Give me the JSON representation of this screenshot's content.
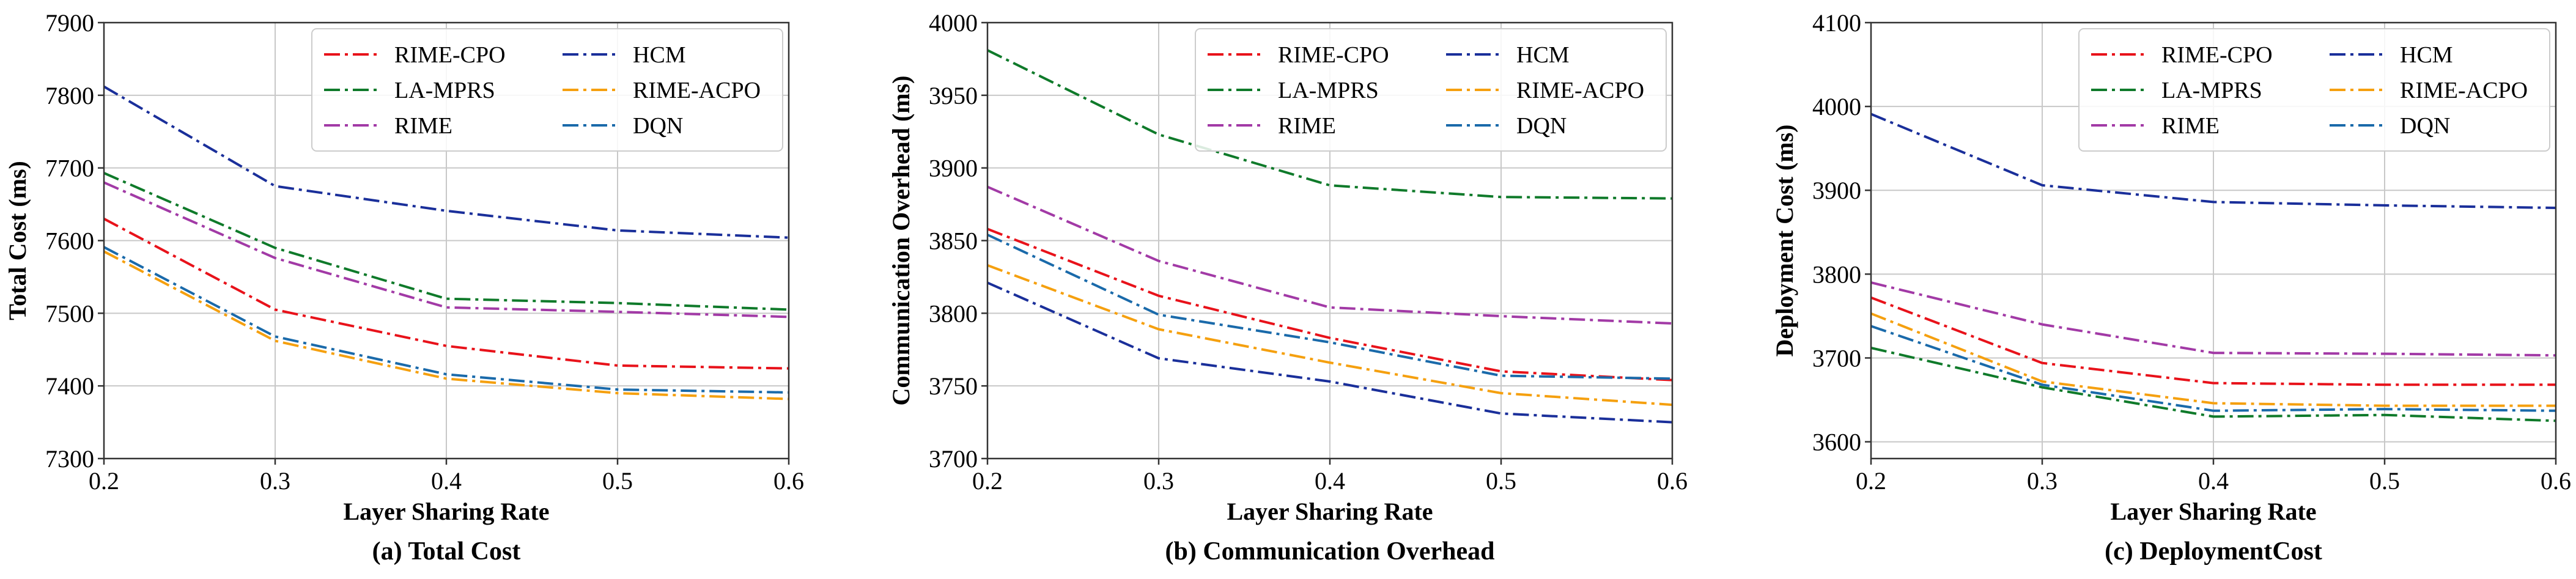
{
  "chart_data": [
    {
      "type": "line",
      "caption": "(a) Total Cost",
      "xlabel": "Layer Sharing Rate",
      "ylabel": "Total Cost (ms)",
      "x": [
        0.2,
        0.3,
        0.4,
        0.5,
        0.6
      ],
      "xticks": [
        "0.2",
        "0.3",
        "0.4",
        "0.5",
        "0.6"
      ],
      "ylim": [
        7300,
        7900
      ],
      "yticks": [
        "7300",
        "7400",
        "7500",
        "7600",
        "7700",
        "7800",
        "7900"
      ],
      "grid": true,
      "legend": "top-right",
      "series": [
        {
          "name": "RIME-CPO",
          "color": "#e8121a",
          "values": [
            7630,
            7505,
            7455,
            7428,
            7424
          ]
        },
        {
          "name": "LA-MPRS",
          "color": "#0f7a2a",
          "values": [
            7693,
            7590,
            7520,
            7514,
            7505
          ]
        },
        {
          "name": "RIME",
          "color": "#a23aa6",
          "values": [
            7680,
            7576,
            7508,
            7502,
            7495
          ]
        },
        {
          "name": "HCM",
          "color": "#1a2f9a",
          "values": [
            7812,
            7675,
            7641,
            7614,
            7604
          ]
        },
        {
          "name": "RIME-ACPO",
          "color": "#f5a00f",
          "values": [
            7585,
            7462,
            7410,
            7390,
            7382
          ]
        },
        {
          "name": "DQN",
          "color": "#1a6aaa",
          "values": [
            7591,
            7468,
            7416,
            7395,
            7391
          ]
        }
      ]
    },
    {
      "type": "line",
      "caption": "(b) Communication Overhead",
      "xlabel": "Layer Sharing Rate",
      "ylabel": "Communication Overhead (ms)",
      "x": [
        0.2,
        0.3,
        0.4,
        0.5,
        0.6
      ],
      "xticks": [
        "0.2",
        "0.3",
        "0.4",
        "0.5",
        "0.6"
      ],
      "ylim": [
        3700,
        4000
      ],
      "yticks": [
        "3700",
        "3750",
        "3800",
        "3850",
        "3900",
        "3950",
        "4000"
      ],
      "grid": true,
      "legend": "top-right",
      "series": [
        {
          "name": "RIME-CPO",
          "color": "#e8121a",
          "values": [
            3858,
            3812,
            3783,
            3760,
            3754
          ]
        },
        {
          "name": "LA-MPRS",
          "color": "#0f7a2a",
          "values": [
            3981,
            3923,
            3888,
            3880,
            3879
          ]
        },
        {
          "name": "RIME",
          "color": "#a23aa6",
          "values": [
            3887,
            3836,
            3804,
            3798,
            3793
          ]
        },
        {
          "name": "HCM",
          "color": "#1a2f9a",
          "values": [
            3821,
            3769,
            3753,
            3731,
            3725
          ]
        },
        {
          "name": "RIME-ACPO",
          "color": "#f5a00f",
          "values": [
            3833,
            3789,
            3766,
            3745,
            3737
          ]
        },
        {
          "name": "DQN",
          "color": "#1a6aaa",
          "values": [
            3854,
            3799,
            3780,
            3757,
            3755
          ]
        }
      ]
    },
    {
      "type": "line",
      "caption": "(c) DeploymentCost",
      "xlabel": "Layer Sharing Rate",
      "ylabel": "Deployment Cost (ms)",
      "x": [
        0.2,
        0.3,
        0.4,
        0.5,
        0.6
      ],
      "xticks": [
        "0.2",
        "0.3",
        "0.4",
        "0.5",
        "0.6"
      ],
      "ylim": [
        3580,
        4100
      ],
      "yticks": [
        "3600",
        "3700",
        "3800",
        "3900",
        "4000",
        "4100"
      ],
      "grid": true,
      "legend": "top-right",
      "series": [
        {
          "name": "RIME-CPO",
          "color": "#e8121a",
          "values": [
            3772,
            3694,
            3670,
            3668,
            3668
          ]
        },
        {
          "name": "LA-MPRS",
          "color": "#0f7a2a",
          "values": [
            3712,
            3665,
            3630,
            3632,
            3625
          ]
        },
        {
          "name": "RIME",
          "color": "#a23aa6",
          "values": [
            3790,
            3740,
            3706,
            3705,
            3703
          ]
        },
        {
          "name": "HCM",
          "color": "#1a2f9a",
          "values": [
            3991,
            3906,
            3886,
            3882,
            3879
          ]
        },
        {
          "name": "RIME-ACPO",
          "color": "#f5a00f",
          "values": [
            3753,
            3672,
            3646,
            3643,
            3643
          ]
        },
        {
          "name": "DQN",
          "color": "#1a6aaa",
          "values": [
            3738,
            3668,
            3637,
            3639,
            3637
          ]
        }
      ]
    }
  ]
}
